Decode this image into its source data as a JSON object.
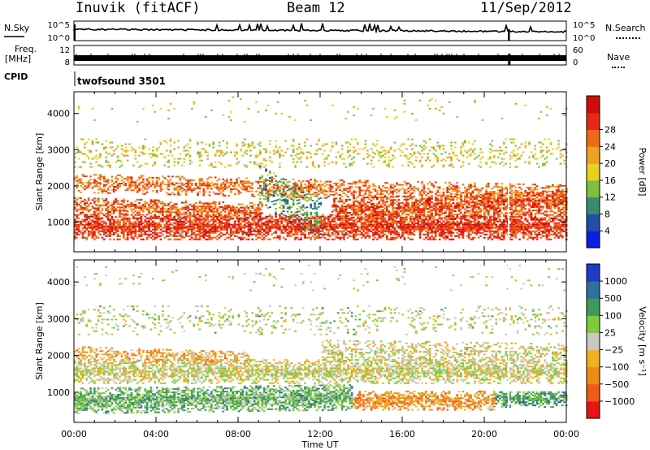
{
  "header": {
    "station": "Inuvik (fitACF)",
    "beam": "Beam 12",
    "date": "11/Sep/2012"
  },
  "strip_labels": {
    "nsky": "N.Sky",
    "nsearch": "N.Search",
    "freq_line1": "Freq.",
    "freq_line2": "[MHz]",
    "nave": "Nave",
    "cpid": "CPID",
    "cpid_value": "twofsound 3501"
  },
  "strip_ticks": {
    "noise_left": [
      "10^5",
      "10^0"
    ],
    "noise_right": [
      "10^5",
      "10^0"
    ],
    "freq_left": [
      "12",
      "8"
    ],
    "nave_right": [
      "60",
      "0"
    ]
  },
  "chart_data": [
    {
      "type": "heatmap",
      "name": "power",
      "ylabel": "Slant Range [km]",
      "ylim": [
        180,
        4600
      ],
      "yticks": [
        1000,
        2000,
        3000,
        4000
      ],
      "xlim_hours": [
        0,
        24
      ],
      "colorbar": {
        "label": "Power [dB]",
        "ticks": [
          "4",
          "8",
          "12",
          "16",
          "20",
          "24",
          "28"
        ],
        "colors": [
          "#0a1ee6",
          "#1f4fa8",
          "#3a8c6e",
          "#7fbf3f",
          "#e6d21e",
          "#f0a020",
          "#f06a14",
          "#e62814",
          "#d20a0a"
        ]
      },
      "bands": [
        {
          "t0": 0,
          "t1": 24,
          "r_start": 850,
          "r_end": 850,
          "width": 700,
          "density": 0.95,
          "color_mean": 0.86
        },
        {
          "t0": 0,
          "t1": 9.2,
          "r_start": 1400,
          "r_end": 1250,
          "width": 500,
          "density": 0.8,
          "color_mean": 0.78
        },
        {
          "t0": 0,
          "t1": 24,
          "r_start": 2050,
          "r_end": 1750,
          "width": 500,
          "density": 0.6,
          "color_mean": 0.74
        },
        {
          "t0": 12.5,
          "t1": 24,
          "r_start": 1300,
          "r_end": 1500,
          "width": 700,
          "density": 0.85,
          "color_mean": 0.8
        },
        {
          "t0": 0,
          "t1": 24,
          "r_start": 2900,
          "r_end": 2900,
          "width": 800,
          "density": 0.22,
          "color_mean": 0.5
        },
        {
          "t0": 9.0,
          "t1": 12.0,
          "r_start": 2000,
          "r_end": 1100,
          "width": 1100,
          "density": 0.45,
          "color_mean": 0.3
        },
        {
          "t0": 0,
          "t1": 24,
          "r_start": 4100,
          "r_end": 4100,
          "width": 700,
          "density": 0.03,
          "color_mean": 0.5
        }
      ]
    },
    {
      "type": "heatmap",
      "name": "velocity",
      "ylabel": "Slant Range [km]",
      "ylim": [
        180,
        4600
      ],
      "yticks": [
        1000,
        2000,
        3000,
        4000
      ],
      "xlim_hours": [
        0,
        24
      ],
      "xticks": [
        "00:00",
        "04:00",
        "08:00",
        "12:00",
        "16:00",
        "20:00",
        "00:00"
      ],
      "xlabel": "Time UT",
      "colorbar": {
        "label": "Velocity [m s⁻¹]",
        "ticks": [
          "1000",
          "500",
          "100",
          "25",
          "−25",
          "−100",
          "−500",
          "−1000"
        ],
        "colors": [
          "#1e3cc8",
          "#2f6f9f",
          "#3f9a5a",
          "#7fcc3a",
          "#c8c8c0",
          "#f0b020",
          "#f08a14",
          "#f05a14",
          "#e61414"
        ]
      },
      "bands": [
        {
          "t0": 0,
          "t1": 13.5,
          "r_start": 750,
          "r_end": 850,
          "width": 700,
          "density": 0.95,
          "color_mean": 0.33
        },
        {
          "t0": 13.5,
          "t1": 20.5,
          "r_start": 750,
          "r_end": 750,
          "width": 500,
          "density": 0.9,
          "color_mean": 0.72
        },
        {
          "t0": 20.5,
          "t1": 24,
          "r_start": 800,
          "r_end": 800,
          "width": 450,
          "density": 0.85,
          "color_mean": 0.28
        },
        {
          "t0": 0,
          "t1": 24,
          "r_start": 1550,
          "r_end": 1550,
          "width": 650,
          "density": 0.8,
          "color_mean": 0.5
        },
        {
          "t0": 0,
          "t1": 8.5,
          "r_start": 2050,
          "r_end": 1900,
          "width": 400,
          "density": 0.6,
          "color_mean": 0.66
        },
        {
          "t0": 12.0,
          "t1": 24,
          "r_start": 2100,
          "r_end": 2000,
          "width": 600,
          "density": 0.5,
          "color_mean": 0.52
        },
        {
          "t0": 0,
          "t1": 24,
          "r_start": 2950,
          "r_end": 2950,
          "width": 800,
          "density": 0.2,
          "color_mean": 0.47
        },
        {
          "t0": 0,
          "t1": 24,
          "r_start": 4100,
          "r_end": 4100,
          "width": 700,
          "density": 0.03,
          "color_mean": 0.5
        }
      ]
    }
  ]
}
